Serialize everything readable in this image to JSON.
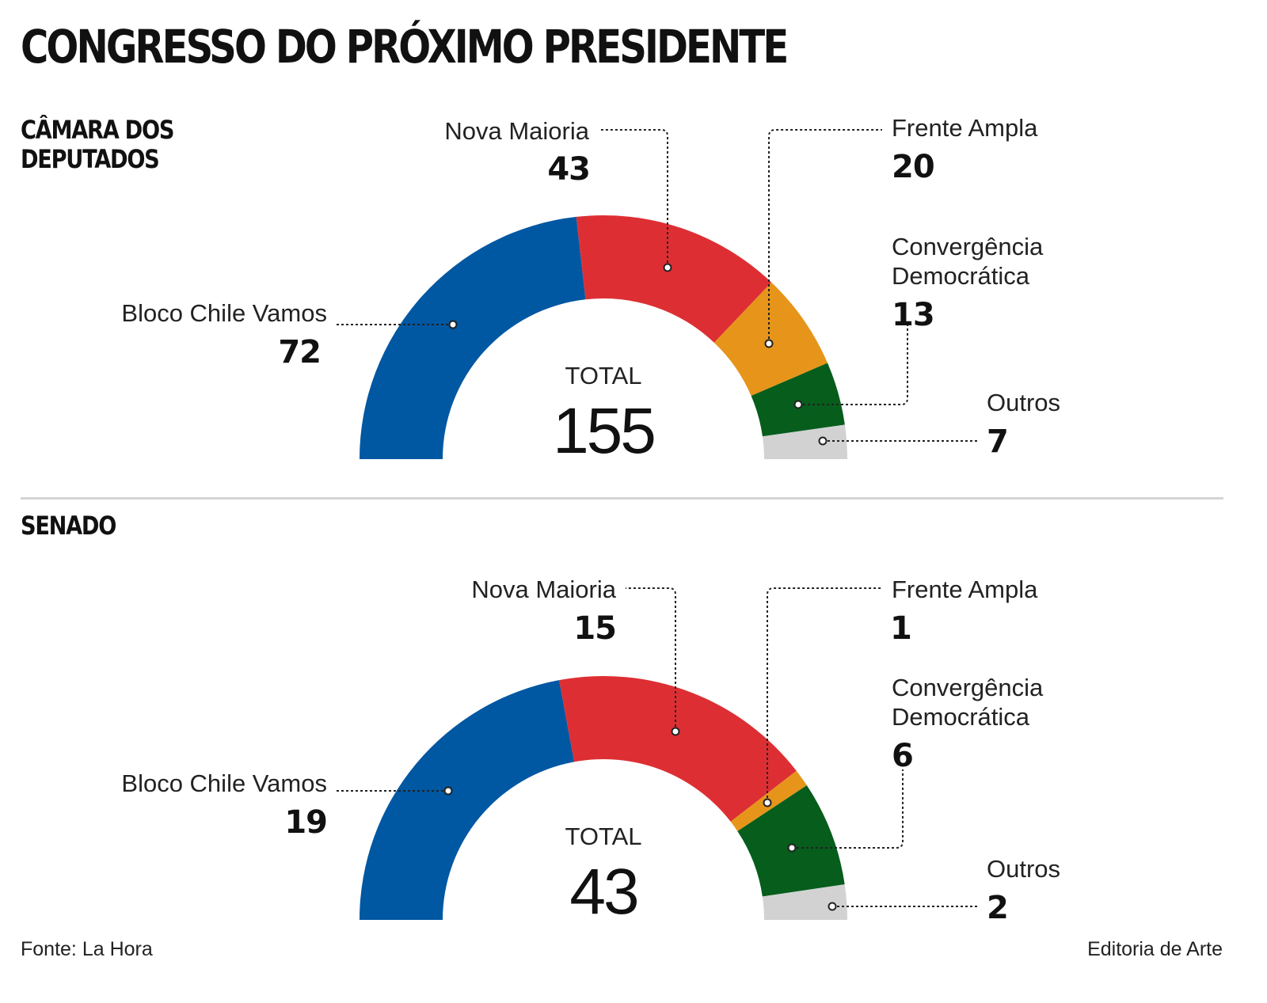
{
  "title": "CONGRESSO DO PRÓXIMO PRESIDENTE",
  "source": "Fonte: La Hora",
  "credit": "Editoria de Arte",
  "chart_data": [
    {
      "type": "semicircle-donut",
      "title": "CÂMARA DOS DEPUTADOS",
      "total_label": "TOTAL",
      "total": 155,
      "series": [
        {
          "name": "Bloco Chile Vamos",
          "value": 72,
          "color": "#0057a2"
        },
        {
          "name": "Nova Maioria",
          "value": 43,
          "color": "#dd2f33"
        },
        {
          "name": "Frente Ampla",
          "value": 20,
          "color": "#e6951a"
        },
        {
          "name": "Convergência Democrática",
          "value": 13,
          "color": "#065d1c"
        },
        {
          "name": "Outros",
          "value": 7,
          "color": "#d2d2d2"
        }
      ]
    },
    {
      "type": "semicircle-donut",
      "title": "SENADO",
      "total_label": "TOTAL",
      "total": 43,
      "series": [
        {
          "name": "Bloco Chile Vamos",
          "value": 19,
          "color": "#0057a2"
        },
        {
          "name": "Nova Maioria",
          "value": 15,
          "color": "#dd2f33"
        },
        {
          "name": "Frente Ampla",
          "value": 1,
          "color": "#e6951a"
        },
        {
          "name": "Convergência Democrática",
          "value": 6,
          "color": "#065d1c"
        },
        {
          "name": "Outros",
          "value": 2,
          "color": "#d2d2d2"
        }
      ]
    }
  ]
}
